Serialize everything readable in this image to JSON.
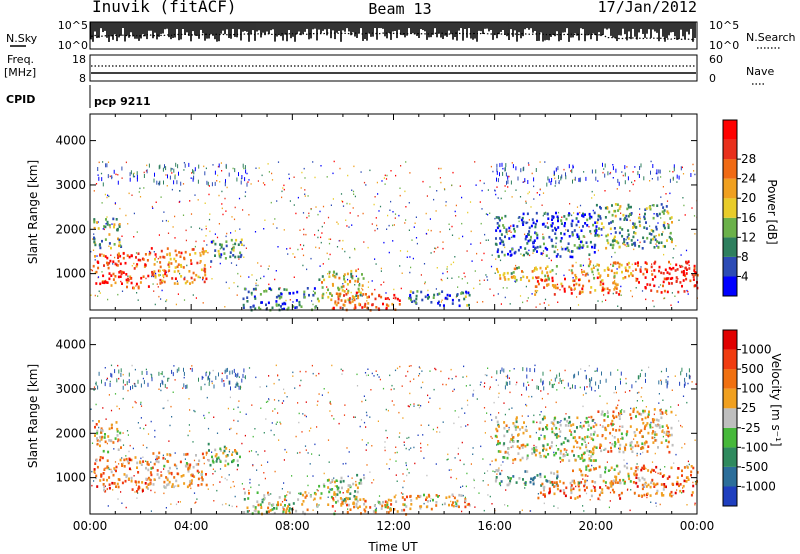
{
  "header": {
    "station": "Inuvik (fitACF)",
    "beam": "Beam 13",
    "date": "17/Jan/2012"
  },
  "top_panels": {
    "nsky_label": "N.Sky",
    "nsearch_label": "N.Search",
    "nsky_ticks": [
      "10^5",
      "10^0"
    ],
    "nsearch_ticks": [
      "10^5",
      "10^0"
    ],
    "freq_label": [
      "Freq.",
      "[MHz]"
    ],
    "freq_ticks": [
      "18",
      "8"
    ],
    "nave_label": "Nave",
    "nave_ticks": [
      "60",
      "0"
    ],
    "cpid_label": "CPID",
    "cpid_value": "pcp 9211"
  },
  "chart_data": [
    {
      "type": "heatmap",
      "name": "power",
      "ylabel": "Slant Range [km]",
      "xlabel": "",
      "xlim": [
        0,
        24
      ],
      "ylim": [
        180,
        4600
      ],
      "yticks": [
        "1000",
        "2000",
        "3000",
        "4000"
      ],
      "colorbar": {
        "label": "Power [dB]",
        "ticks": [
          "4",
          "8",
          "12",
          "16",
          "20",
          "24",
          "28"
        ],
        "colors": [
          "#0000ff",
          "#2c4bb5",
          "#2e7f5e",
          "#6bb14a",
          "#e8cc2a",
          "#f0a020",
          "#f06a14",
          "#e8301c",
          "#ff0000"
        ]
      },
      "regions": [
        {
          "t": [
            0.1,
            2.3
          ],
          "r": [
            700,
            1500
          ],
          "level": 0.85
        },
        {
          "t": [
            2.3,
            4.6
          ],
          "r": [
            800,
            1600
          ],
          "level": 0.7
        },
        {
          "t": [
            4.6,
            6.0
          ],
          "r": [
            1300,
            1800
          ],
          "level": 0.3
        },
        {
          "t": [
            0.1,
            1.2
          ],
          "r": [
            1600,
            2300
          ],
          "level": 0.4
        },
        {
          "t": [
            6.0,
            9.0
          ],
          "r": [
            200,
            700
          ],
          "level": 0.2
        },
        {
          "t": [
            9.0,
            10.8
          ],
          "r": [
            400,
            1100
          ],
          "level": 0.5
        },
        {
          "t": [
            9.5,
            12.5
          ],
          "r": [
            200,
            600
          ],
          "level": 0.8
        },
        {
          "t": [
            12.5,
            15.0
          ],
          "r": [
            300,
            650
          ],
          "level": 0.25
        },
        {
          "t": [
            16.0,
            18.5
          ],
          "r": [
            850,
            1200
          ],
          "level": 0.55
        },
        {
          "t": [
            17.5,
            21.0
          ],
          "r": [
            550,
            950
          ],
          "level": 0.75
        },
        {
          "t": [
            19.0,
            21.5
          ],
          "r": [
            900,
            1300
          ],
          "level": 0.6
        },
        {
          "t": [
            21.5,
            24.0
          ],
          "r": [
            600,
            1300
          ],
          "level": 0.9
        },
        {
          "t": [
            16.0,
            20.0
          ],
          "r": [
            1400,
            2400
          ],
          "level": 0.15
        },
        {
          "t": [
            20.0,
            23.0
          ],
          "r": [
            1600,
            2600
          ],
          "level": 0.35
        }
      ]
    },
    {
      "type": "heatmap",
      "name": "velocity",
      "ylabel": "Slant Range [km]",
      "xlabel": "Time UT",
      "xlim": [
        0,
        24
      ],
      "ylim": [
        180,
        4600
      ],
      "yticks": [
        "1000",
        "2000",
        "3000",
        "4000"
      ],
      "xticks": [
        "00:00",
        "04:00",
        "08:00",
        "12:00",
        "16:00",
        "20:00",
        "00:00"
      ],
      "colorbar": {
        "label": "Velocity [m s⁻¹]",
        "ticks": [
          "1000",
          "500",
          "100",
          "25",
          "-25",
          "-100",
          "-500",
          "-1000"
        ],
        "colors": [
          "#1f3fbf",
          "#2c6e9a",
          "#2f8a5e",
          "#46b83a",
          "#bebebe",
          "#f0a020",
          "#f07010",
          "#f03c10",
          "#e00000"
        ]
      },
      "regions": [
        {
          "t": [
            0.1,
            2.3
          ],
          "r": [
            700,
            1500
          ],
          "level": 0.7
        },
        {
          "t": [
            2.3,
            4.6
          ],
          "r": [
            800,
            1600
          ],
          "level": 0.65
        },
        {
          "t": [
            4.6,
            6.0
          ],
          "r": [
            1300,
            1800
          ],
          "level": 0.45
        },
        {
          "t": [
            0.1,
            1.2
          ],
          "r": [
            1600,
            2300
          ],
          "level": 0.6
        },
        {
          "t": [
            6.0,
            9.0
          ],
          "r": [
            200,
            700
          ],
          "level": 0.5
        },
        {
          "t": [
            9.0,
            10.8
          ],
          "r": [
            400,
            1100
          ],
          "level": 0.45
        },
        {
          "t": [
            9.5,
            12.5
          ],
          "r": [
            200,
            600
          ],
          "level": 0.6
        },
        {
          "t": [
            12.5,
            15.0
          ],
          "r": [
            300,
            650
          ],
          "level": 0.6
        },
        {
          "t": [
            16.0,
            18.5
          ],
          "r": [
            850,
            1200
          ],
          "level": 0.35
        },
        {
          "t": [
            17.5,
            21.0
          ],
          "r": [
            550,
            950
          ],
          "level": 0.7
        },
        {
          "t": [
            19.0,
            21.5
          ],
          "r": [
            900,
            1300
          ],
          "level": 0.55
        },
        {
          "t": [
            21.5,
            24.0
          ],
          "r": [
            600,
            1300
          ],
          "level": 0.75
        },
        {
          "t": [
            16.0,
            20.0
          ],
          "r": [
            1400,
            2400
          ],
          "level": 0.5
        },
        {
          "t": [
            20.0,
            23.0
          ],
          "r": [
            1600,
            2600
          ],
          "level": 0.6
        }
      ]
    }
  ]
}
